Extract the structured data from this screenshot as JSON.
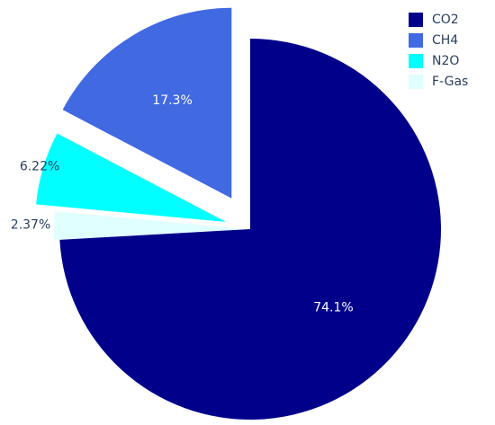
{
  "chart_data": {
    "type": "pie",
    "categories": [
      "CO2",
      "CH4",
      "N2O",
      "F-Gas"
    ],
    "values": [
      74.1,
      17.3,
      6.22,
      2.37
    ],
    "value_labels": [
      "74.1%",
      "17.3%",
      "6.22%",
      "2.37%"
    ],
    "colors": [
      "#00008b",
      "#4169e1",
      "#00ffff",
      "#e0ffff"
    ],
    "legend": "top-right"
  }
}
